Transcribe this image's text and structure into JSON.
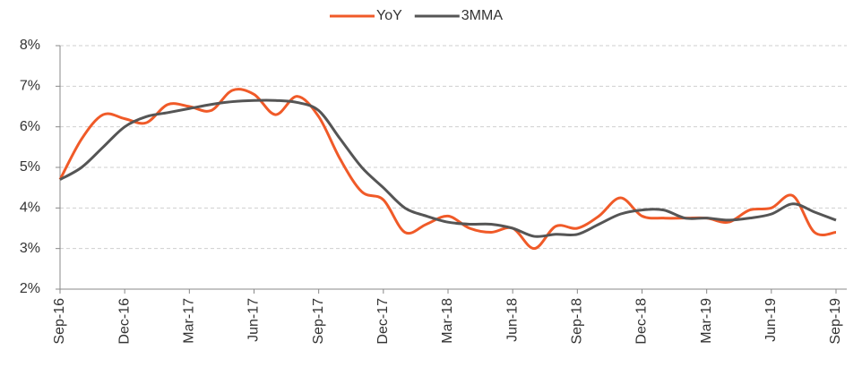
{
  "chart_data": {
    "type": "line",
    "categories": [
      "Sep-16",
      null,
      null,
      "Dec-16",
      null,
      null,
      "Mar-17",
      null,
      null,
      "Jun-17",
      null,
      null,
      "Sep-17",
      null,
      null,
      "Dec-17",
      null,
      null,
      "Mar-18",
      null,
      null,
      "Jun-18",
      null,
      null,
      "Sep-18",
      null,
      null,
      "Dec-18",
      null,
      null,
      "Mar-19",
      null,
      null,
      "Jun-19",
      null,
      null,
      "Sep-19"
    ],
    "series": [
      {
        "name": "YoY",
        "color": "#f05a28",
        "values": [
          4.7,
          5.7,
          6.3,
          6.2,
          6.1,
          6.55,
          6.5,
          6.4,
          6.9,
          6.8,
          6.3,
          6.75,
          6.25,
          5.2,
          4.4,
          4.2,
          3.4,
          3.6,
          3.8,
          3.5,
          3.4,
          3.5,
          3.0,
          3.55,
          3.5,
          3.8,
          4.25,
          3.8,
          3.75,
          3.75,
          3.75,
          3.65,
          3.95,
          4.0,
          4.3,
          3.4,
          3.4
        ]
      },
      {
        "name": "3MMA",
        "color": "#555555",
        "values": [
          4.7,
          5.0,
          5.5,
          6.0,
          6.25,
          6.35,
          6.45,
          6.55,
          6.62,
          6.65,
          6.65,
          6.6,
          6.4,
          5.7,
          5.0,
          4.5,
          4.0,
          3.8,
          3.65,
          3.6,
          3.6,
          3.5,
          3.3,
          3.35,
          3.35,
          3.6,
          3.85,
          3.95,
          3.95,
          3.75,
          3.75,
          3.7,
          3.75,
          3.85,
          4.1,
          3.9,
          3.7
        ]
      }
    ],
    "ylim": [
      2,
      8
    ],
    "yticks": [
      {
        "value": 2,
        "label": "2%"
      },
      {
        "value": 3,
        "label": "3%"
      },
      {
        "value": 4,
        "label": "4%"
      },
      {
        "value": 5,
        "label": "5%"
      },
      {
        "value": 6,
        "label": "6%"
      },
      {
        "value": 7,
        "label": "7%"
      },
      {
        "value": 8,
        "label": "8%"
      }
    ],
    "grid": true,
    "legend": "top"
  }
}
